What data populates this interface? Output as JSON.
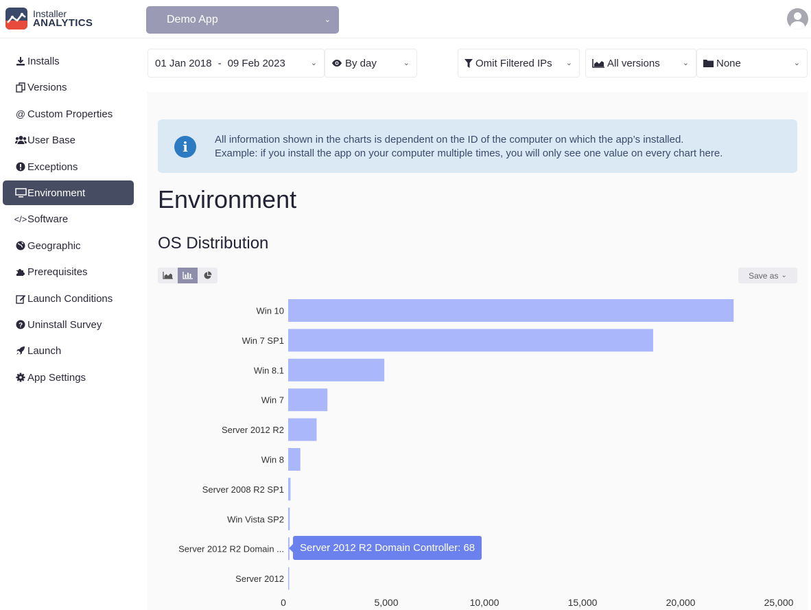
{
  "brand": {
    "line1": "Installer",
    "line2": "ANALYTICS"
  },
  "app_selector": {
    "value": "Demo App"
  },
  "sidebar": {
    "items": [
      {
        "label": "Installs",
        "icon": "download-icon"
      },
      {
        "label": "Versions",
        "icon": "copy-icon"
      },
      {
        "label": "Custom Properties",
        "icon": "at-icon"
      },
      {
        "label": "User Base",
        "icon": "users-icon"
      },
      {
        "label": "Exceptions",
        "icon": "exclamation-icon"
      },
      {
        "label": "Environment",
        "icon": "desktop-icon",
        "active": true
      },
      {
        "label": "Software",
        "icon": "code-icon"
      },
      {
        "label": "Geographic",
        "icon": "globe-icon"
      },
      {
        "label": "Prerequisites",
        "icon": "puzzle-icon"
      },
      {
        "label": "Launch Conditions",
        "icon": "edit-icon"
      },
      {
        "label": "Uninstall Survey",
        "icon": "question-icon"
      },
      {
        "label": "Launch",
        "icon": "rocket-icon"
      },
      {
        "label": "App Settings",
        "icon": "gear-icon"
      }
    ]
  },
  "filters": {
    "date_start": "01 Jan 2018",
    "date_sep": "-",
    "date_end": "09 Feb 2023",
    "granularity": "By day",
    "ip_filter": "Omit Filtered IPs",
    "versions": "All versions",
    "group": "None"
  },
  "info": {
    "line1": "All information shown in the charts is dependent on the ID of the computer on which the app’s installed.",
    "line2": "Example: if you install the app on your computer multiple times, you will only see one value on every chart here."
  },
  "page_title": "Environment",
  "section_title": "OS Distribution",
  "save_as_label": "Save as",
  "tooltip": "Server 2012 R2 Domain Controller: 68",
  "colors": {
    "bar": "#aab8fb",
    "tooltip": "#6b82ee",
    "active_nav": "#464d63"
  },
  "chart_data": {
    "type": "bar",
    "orientation": "horizontal",
    "categories": [
      "Win 10",
      "Win 7 SP1",
      "Win 8.1",
      "Win 7",
      "Server 2012 R2",
      "Win 8",
      "Server 2008 R2 SP1",
      "Win Vista SP2",
      "Server 2012 R2 Domain ...",
      "Server 2012"
    ],
    "values": [
      22700,
      18600,
      4900,
      2000,
      1450,
      620,
      120,
      80,
      68,
      40
    ],
    "xlim": [
      0,
      25000
    ],
    "xticks": [
      "0",
      "5,000",
      "10,000",
      "15,000",
      "20,000",
      "25,000"
    ],
    "grid": false
  }
}
